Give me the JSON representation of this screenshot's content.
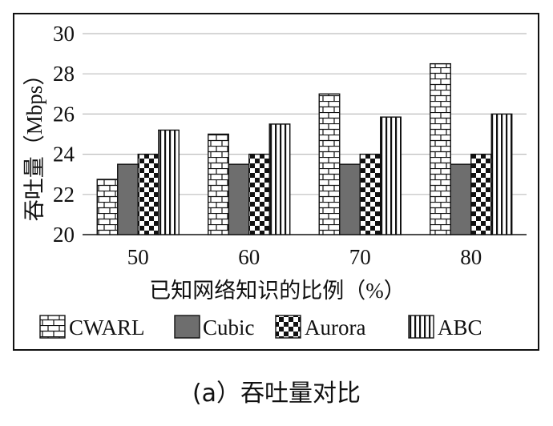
{
  "chart_data": {
    "type": "bar",
    "categories": [
      "50",
      "60",
      "70",
      "80"
    ],
    "series": [
      {
        "name": "CWARL",
        "values": [
          22.75,
          25.0,
          27.0,
          28.5
        ],
        "pattern": "brick"
      },
      {
        "name": "Cubic",
        "values": [
          23.5,
          23.5,
          23.5,
          23.5
        ],
        "pattern": "solid"
      },
      {
        "name": "Aurora",
        "values": [
          24.0,
          24.0,
          24.0,
          24.0
        ],
        "pattern": "checker"
      },
      {
        "name": "ABC",
        "values": [
          25.2,
          25.5,
          25.85,
          26.0
        ],
        "pattern": "vertical-stripes"
      }
    ],
    "xlabel": "已知网络知识的比例（%）",
    "ylabel": "吞吐量（Mbps）",
    "ylim": [
      20,
      30
    ],
    "yticks": [
      20,
      22,
      24,
      26,
      28,
      30
    ],
    "grid": true,
    "legend": "bottom"
  },
  "caption": "(a）吞吐量对比",
  "colors": {
    "solid_fill": "#6e6e6e",
    "frame": "#111111",
    "grid": "#bdbdbd"
  }
}
